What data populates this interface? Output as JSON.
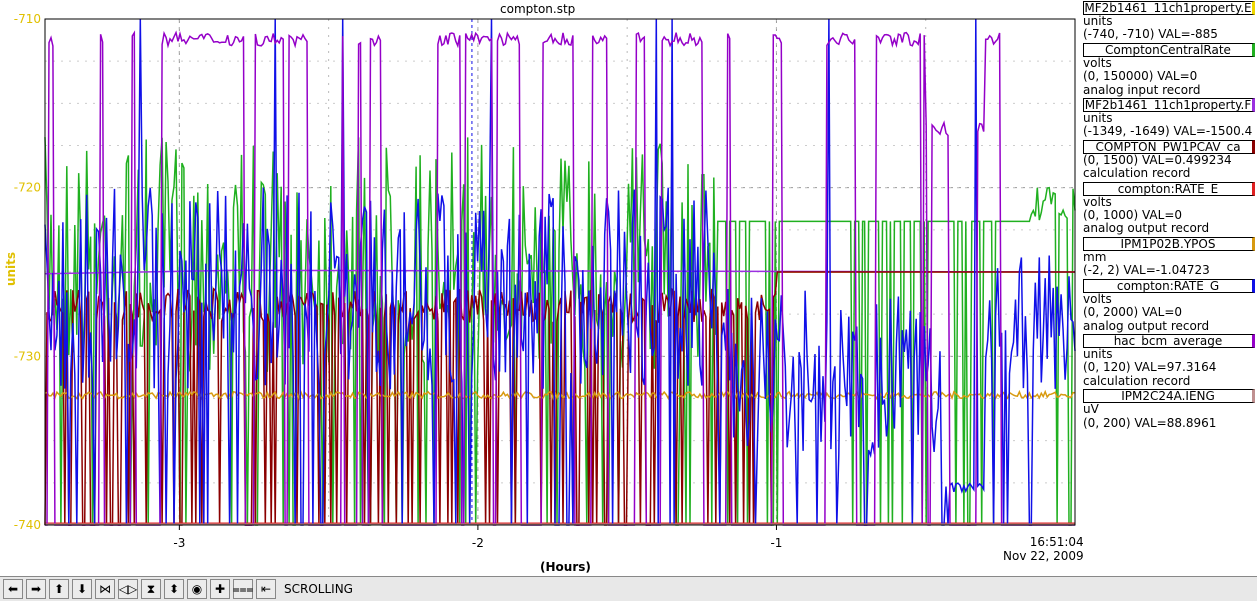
{
  "chart_data": {
    "type": "line",
    "title": "compton.stp",
    "xlabel": "(Hours)",
    "ylabel": "units",
    "xlim": [
      -3.45,
      0.0
    ],
    "ylim": [
      -740,
      -710
    ],
    "x_ticks": [
      "-3",
      "-2",
      "-1"
    ],
    "y_ticks": [
      "-710",
      "-720",
      "-730",
      "-740"
    ],
    "end_time": "16:51:04",
    "end_date": "Nov 22, 2009",
    "grid": true,
    "legend_position": "right",
    "series": [
      {
        "name": "MF2b1461_11ch1property.E",
        "color": "#f0d800",
        "units": "units",
        "range": "(-740, -710) VAL=-885",
        "desc": ""
      },
      {
        "name": "ComptonCentralRate",
        "color": "#20b020",
        "units": "volts",
        "range": "(0, 150000) VAL=0",
        "desc": "analog input record"
      },
      {
        "name": "MF2b1461_11ch1property.F",
        "color": "#9b30e0",
        "units": "units",
        "range": "(-1349, -1649) VAL=-1500.4",
        "desc": ""
      },
      {
        "name": "COMPTON_PW1PCAV_ca",
        "color": "#8b0000",
        "units": "",
        "range": "(0, 1500) VAL=0.499234",
        "desc": "calculation record"
      },
      {
        "name": "compton:RATE_E",
        "color": "#e02020",
        "units": "volts",
        "range": "(0, 1000) VAL=0",
        "desc": "analog output record"
      },
      {
        "name": "IPM1P02B.YPOS",
        "color": "#d89a10",
        "units": "mm",
        "range": "(-2, 2) VAL=-1.04723",
        "desc": ""
      },
      {
        "name": "compton:RATE_G",
        "color": "#1010e8",
        "units": "volts",
        "range": "(0, 2000) VAL=0",
        "desc": "analog output record"
      },
      {
        "name": "hac_bcm_average",
        "color": "#9400c8",
        "units": "units",
        "range": "(0, 120) VAL=97.3164",
        "desc": "calculation record"
      },
      {
        "name": "IPM2C24A.IENG",
        "color": "#c09090",
        "units": "uV",
        "range": "(0, 200) VAL=88.8961",
        "desc": ""
      }
    ]
  },
  "toolbar": {
    "mode_label": "SCROLLING",
    "buttons": [
      {
        "icon": "arrow-left-icon",
        "glyph": "⬅"
      },
      {
        "icon": "arrow-right-icon",
        "glyph": "➡"
      },
      {
        "icon": "arrow-up-icon",
        "glyph": "⬆"
      },
      {
        "icon": "arrow-down-icon",
        "glyph": "⬇"
      },
      {
        "icon": "zoom-in-horizontal-icon",
        "glyph": "⋈"
      },
      {
        "icon": "zoom-out-horizontal-icon",
        "glyph": "◁▷"
      },
      {
        "icon": "zoom-in-vertical-icon",
        "glyph": "⧗"
      },
      {
        "icon": "zoom-out-vertical-icon",
        "glyph": "⬍"
      },
      {
        "icon": "auto-scale-icon",
        "glyph": "◉"
      },
      {
        "icon": "add-icon",
        "glyph": "✚"
      },
      {
        "icon": "reset-icon",
        "glyph": "⩶"
      },
      {
        "icon": "scroll-mode-icon",
        "glyph": "⇤"
      }
    ]
  }
}
